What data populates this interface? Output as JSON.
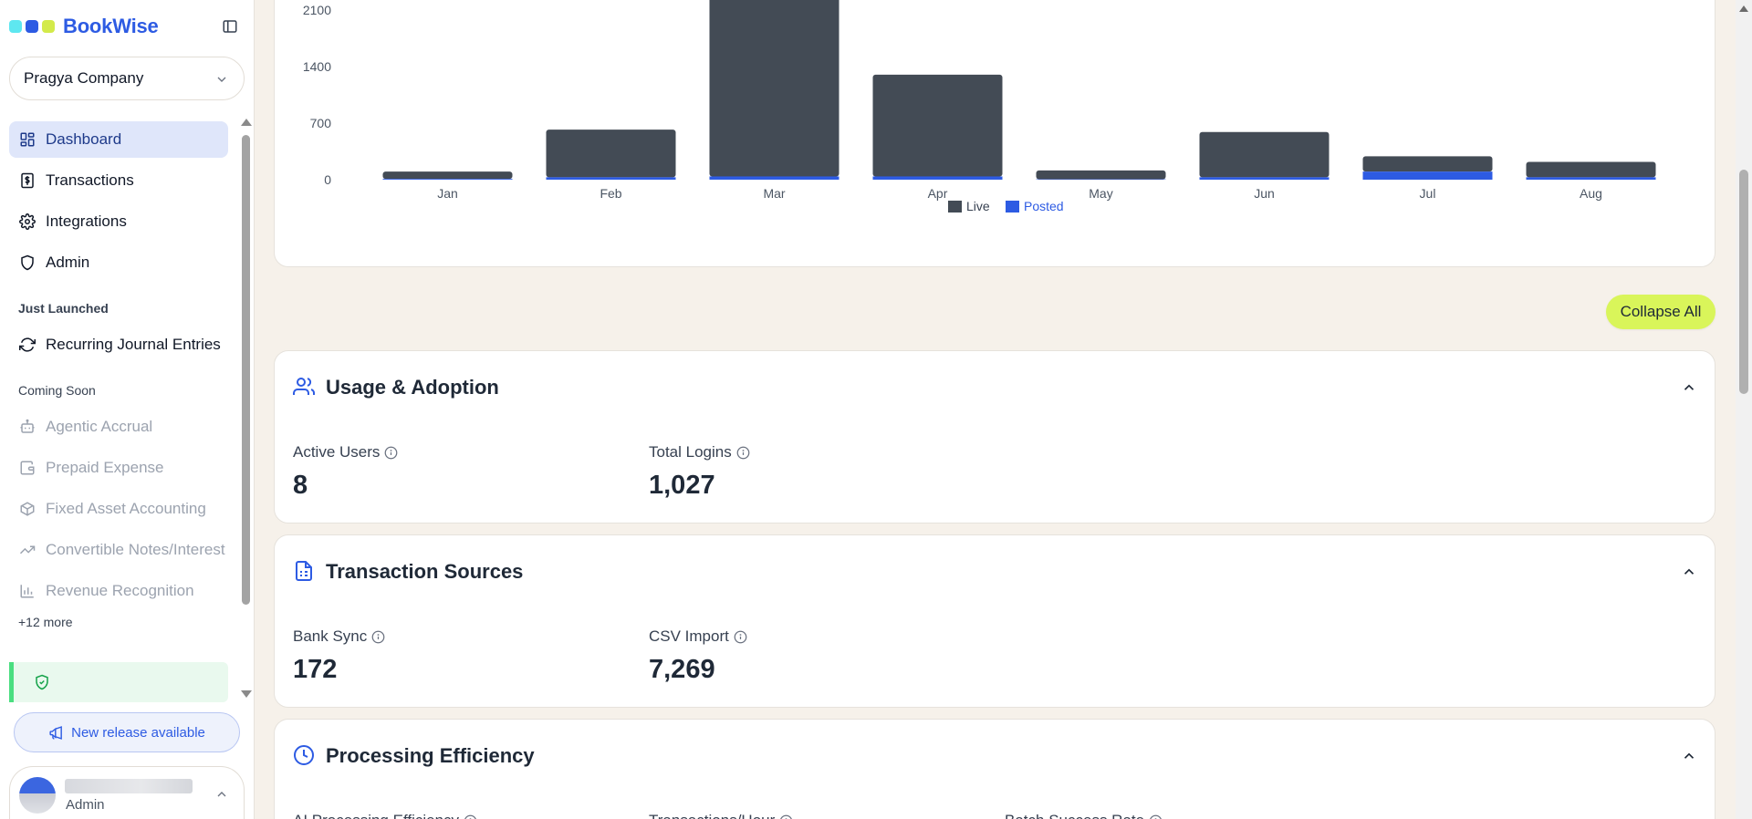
{
  "brand": {
    "name": "BookWise",
    "dot_colors": [
      "#5ee7f0",
      "#2d5be3",
      "#d3ea4a"
    ]
  },
  "company_selector": {
    "value": "Pragya Company"
  },
  "nav": {
    "items": [
      {
        "label": "Dashboard",
        "icon": "dashboard-icon",
        "active": true
      },
      {
        "label": "Transactions",
        "icon": "dollar-doc-icon"
      },
      {
        "label": "Integrations",
        "icon": "gear-icon"
      },
      {
        "label": "Admin",
        "icon": "shield-icon"
      }
    ],
    "just_launched_label": "Just Launched",
    "just_launched": [
      {
        "label": "Recurring Journal Entries",
        "icon": "refresh-icon"
      }
    ],
    "coming_soon_label": "Coming Soon",
    "coming_soon": [
      {
        "label": "Agentic Accrual",
        "icon": "robot-icon"
      },
      {
        "label": "Prepaid Expense",
        "icon": "wallet-icon"
      },
      {
        "label": "Fixed Asset Accounting",
        "icon": "box-icon"
      },
      {
        "label": "Convertible Notes/Interest",
        "icon": "trend-icon"
      },
      {
        "label": "Revenue Recognition",
        "icon": "bar-chart-icon"
      }
    ],
    "more_label": "+12 more"
  },
  "release_button": {
    "label": "New release available"
  },
  "user": {
    "role": "Admin"
  },
  "chart_data": {
    "type": "bar",
    "stacked": true,
    "categories": [
      "Jan",
      "Feb",
      "Mar",
      "Apr",
      "May",
      "Jun",
      "Jul",
      "Aug"
    ],
    "series": [
      {
        "name": "Live",
        "color": "#434b55",
        "values": [
          90,
          590,
          2320,
          1260,
          110,
          560,
          190,
          190
        ]
      },
      {
        "name": "Posted",
        "color": "#2d5be3",
        "values": [
          10,
          30,
          40,
          40,
          5,
          30,
          100,
          30
        ]
      }
    ],
    "y_ticks": [
      0,
      700,
      1400,
      2100
    ],
    "ylim": [
      0,
      2100
    ],
    "legend": "bottom-center"
  },
  "collapse_all": {
    "label": "Collapse All"
  },
  "sections": [
    {
      "title": "Usage & Adoption",
      "icon": "users-icon",
      "metrics": [
        {
          "label": "Active Users",
          "value": "8"
        },
        {
          "label": "Total Logins",
          "value": "1,027"
        }
      ]
    },
    {
      "title": "Transaction Sources",
      "icon": "document-icon",
      "metrics": [
        {
          "label": "Bank Sync",
          "value": "172"
        },
        {
          "label": "CSV Import",
          "value": "7,269"
        }
      ]
    },
    {
      "title": "Processing Efficiency",
      "icon": "clock-icon",
      "metrics": [
        {
          "label": "AI Processing Efficiency",
          "value": ""
        },
        {
          "label": "Transactions/Hour",
          "value": ""
        },
        {
          "label": "Batch Success Rate",
          "value": ""
        }
      ]
    }
  ]
}
